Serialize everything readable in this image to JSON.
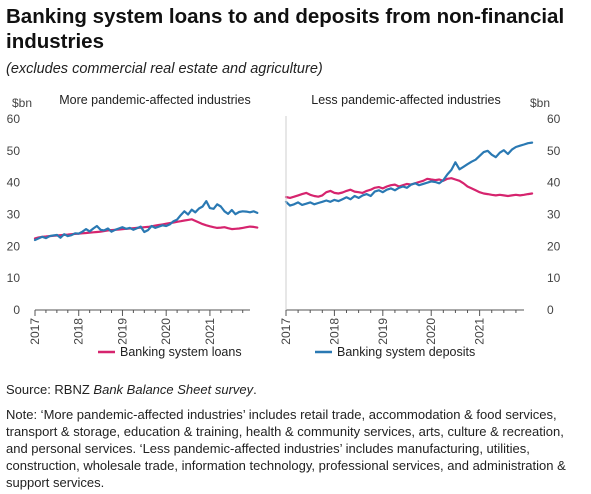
{
  "title": "Banking system loans to and deposits from non-financial industries",
  "subtitle": "(excludes commercial real estate and agriculture)",
  "source_prefix": "Source: RBNZ ",
  "source_italic": "Bank Balance Sheet survey",
  "source_suffix": ".",
  "note": "Note: ‘More pandemic-affected industries’ includes retail trade, accommodation & food services, transport & storage, education & training, health & community services, arts, culture & recreation, and personal services. ‘Less pandemic-affected industries’ includes manufacturing, utilities, construction, wholesale trade, information technology, professional services, and administration & support services.",
  "colors": {
    "loans": "#d6246e",
    "deposits": "#2a79b3",
    "axis": "#555555"
  },
  "chart_data": [
    {
      "type": "line",
      "title": "More pandemic-affected industries",
      "ylabel": "$bn",
      "ylim": [
        0,
        60
      ],
      "yticks": [
        "0",
        "10",
        "20",
        "30",
        "40",
        "50",
        "60"
      ],
      "xticks": [
        "2017",
        "2018",
        "2019",
        "2020",
        "2021"
      ],
      "x_start": "2017-01",
      "x_end": "2021-12",
      "series": [
        {
          "name": "Banking system loans",
          "color": "#d6246e",
          "values": [
            22.5,
            22.8,
            23.0,
            23.1,
            23.2,
            23.3,
            23.4,
            23.5,
            23.6,
            23.7,
            23.8,
            23.9,
            24.0,
            24.1,
            24.2,
            24.3,
            24.4,
            24.5,
            24.6,
            24.8,
            25.0,
            25.1,
            25.2,
            25.3,
            25.4,
            25.5,
            25.6,
            25.7,
            25.8,
            25.9,
            26.0,
            26.1,
            26.3,
            26.5,
            26.7,
            26.9,
            27.1,
            27.3,
            27.5,
            27.7,
            27.9,
            28.1,
            28.3,
            28.5,
            28.0,
            27.5,
            27.0,
            26.6,
            26.3,
            26.0,
            25.8,
            25.9,
            26.0,
            25.7,
            25.4,
            25.5,
            25.6,
            25.8,
            26.0,
            26.2,
            26.1,
            25.9
          ]
        },
        {
          "name": "Banking system deposits",
          "color": "#2a79b3",
          "values": [
            22.0,
            22.5,
            23.0,
            22.6,
            23.2,
            23.4,
            23.6,
            22.7,
            23.8,
            23.2,
            23.5,
            24.1,
            24.0,
            24.6,
            25.4,
            24.7,
            25.6,
            26.4,
            25.2,
            25.0,
            25.6,
            24.6,
            25.2,
            25.6,
            26.0,
            25.5,
            25.8,
            25.2,
            25.7,
            26.2,
            24.5,
            25.1,
            26.4,
            25.8,
            26.2,
            26.6,
            26.4,
            26.9,
            27.9,
            28.4,
            29.8,
            31.0,
            30.0,
            31.5,
            30.7,
            31.9,
            32.5,
            34.2,
            32.0,
            31.8,
            33.2,
            32.5,
            31.0,
            30.2,
            31.4,
            30.1,
            30.8,
            31.0,
            30.9,
            30.7,
            31.0,
            30.5
          ]
        }
      ]
    },
    {
      "type": "line",
      "title": "Less pandemic-affected industries",
      "ylabel": "$bn",
      "ylim": [
        0,
        60
      ],
      "yticks": [
        "0",
        "10",
        "20",
        "30",
        "40",
        "50",
        "60"
      ],
      "xticks": [
        "2017",
        "2018",
        "2019",
        "2020",
        "2021"
      ],
      "x_start": "2017-01",
      "x_end": "2021-12",
      "series": [
        {
          "name": "Banking system loans",
          "color": "#d6246e",
          "values": [
            35.5,
            35.2,
            35.6,
            36.0,
            36.4,
            36.8,
            36.2,
            35.8,
            35.6,
            36.0,
            37.0,
            37.4,
            36.8,
            36.6,
            36.9,
            37.4,
            37.8,
            37.2,
            37.0,
            36.8,
            37.4,
            37.8,
            38.4,
            38.6,
            38.2,
            38.8,
            39.2,
            39.4,
            38.8,
            39.2,
            39.6,
            39.4,
            39.8,
            40.2,
            40.6,
            41.2,
            41.0,
            40.8,
            41.0,
            40.6,
            41.2,
            41.4,
            41.0,
            40.6,
            39.8,
            38.8,
            38.2,
            37.6,
            37.0,
            36.6,
            36.4,
            36.2,
            36.0,
            36.2,
            36.0,
            35.8,
            36.0,
            36.2,
            36.0,
            36.2,
            36.4,
            36.6
          ]
        },
        {
          "name": "Banking system deposits",
          "color": "#2a79b3",
          "values": [
            34.0,
            32.8,
            33.2,
            33.8,
            33.0,
            33.4,
            33.8,
            33.2,
            33.6,
            34.0,
            34.4,
            34.0,
            34.6,
            34.2,
            34.8,
            35.4,
            34.8,
            35.8,
            35.2,
            36.0,
            36.4,
            35.8,
            37.2,
            37.6,
            37.0,
            37.8,
            38.2,
            37.6,
            38.4,
            38.8,
            38.4,
            39.4,
            39.8,
            39.2,
            39.6,
            40.0,
            40.4,
            40.2,
            39.8,
            40.8,
            42.6,
            44.0,
            46.4,
            44.2,
            45.0,
            45.8,
            46.6,
            47.2,
            48.4,
            49.6,
            50.0,
            48.8,
            48.0,
            49.4,
            50.2,
            49.0,
            50.4,
            51.2,
            51.6,
            52.0,
            52.4,
            52.6
          ]
        }
      ]
    }
  ]
}
